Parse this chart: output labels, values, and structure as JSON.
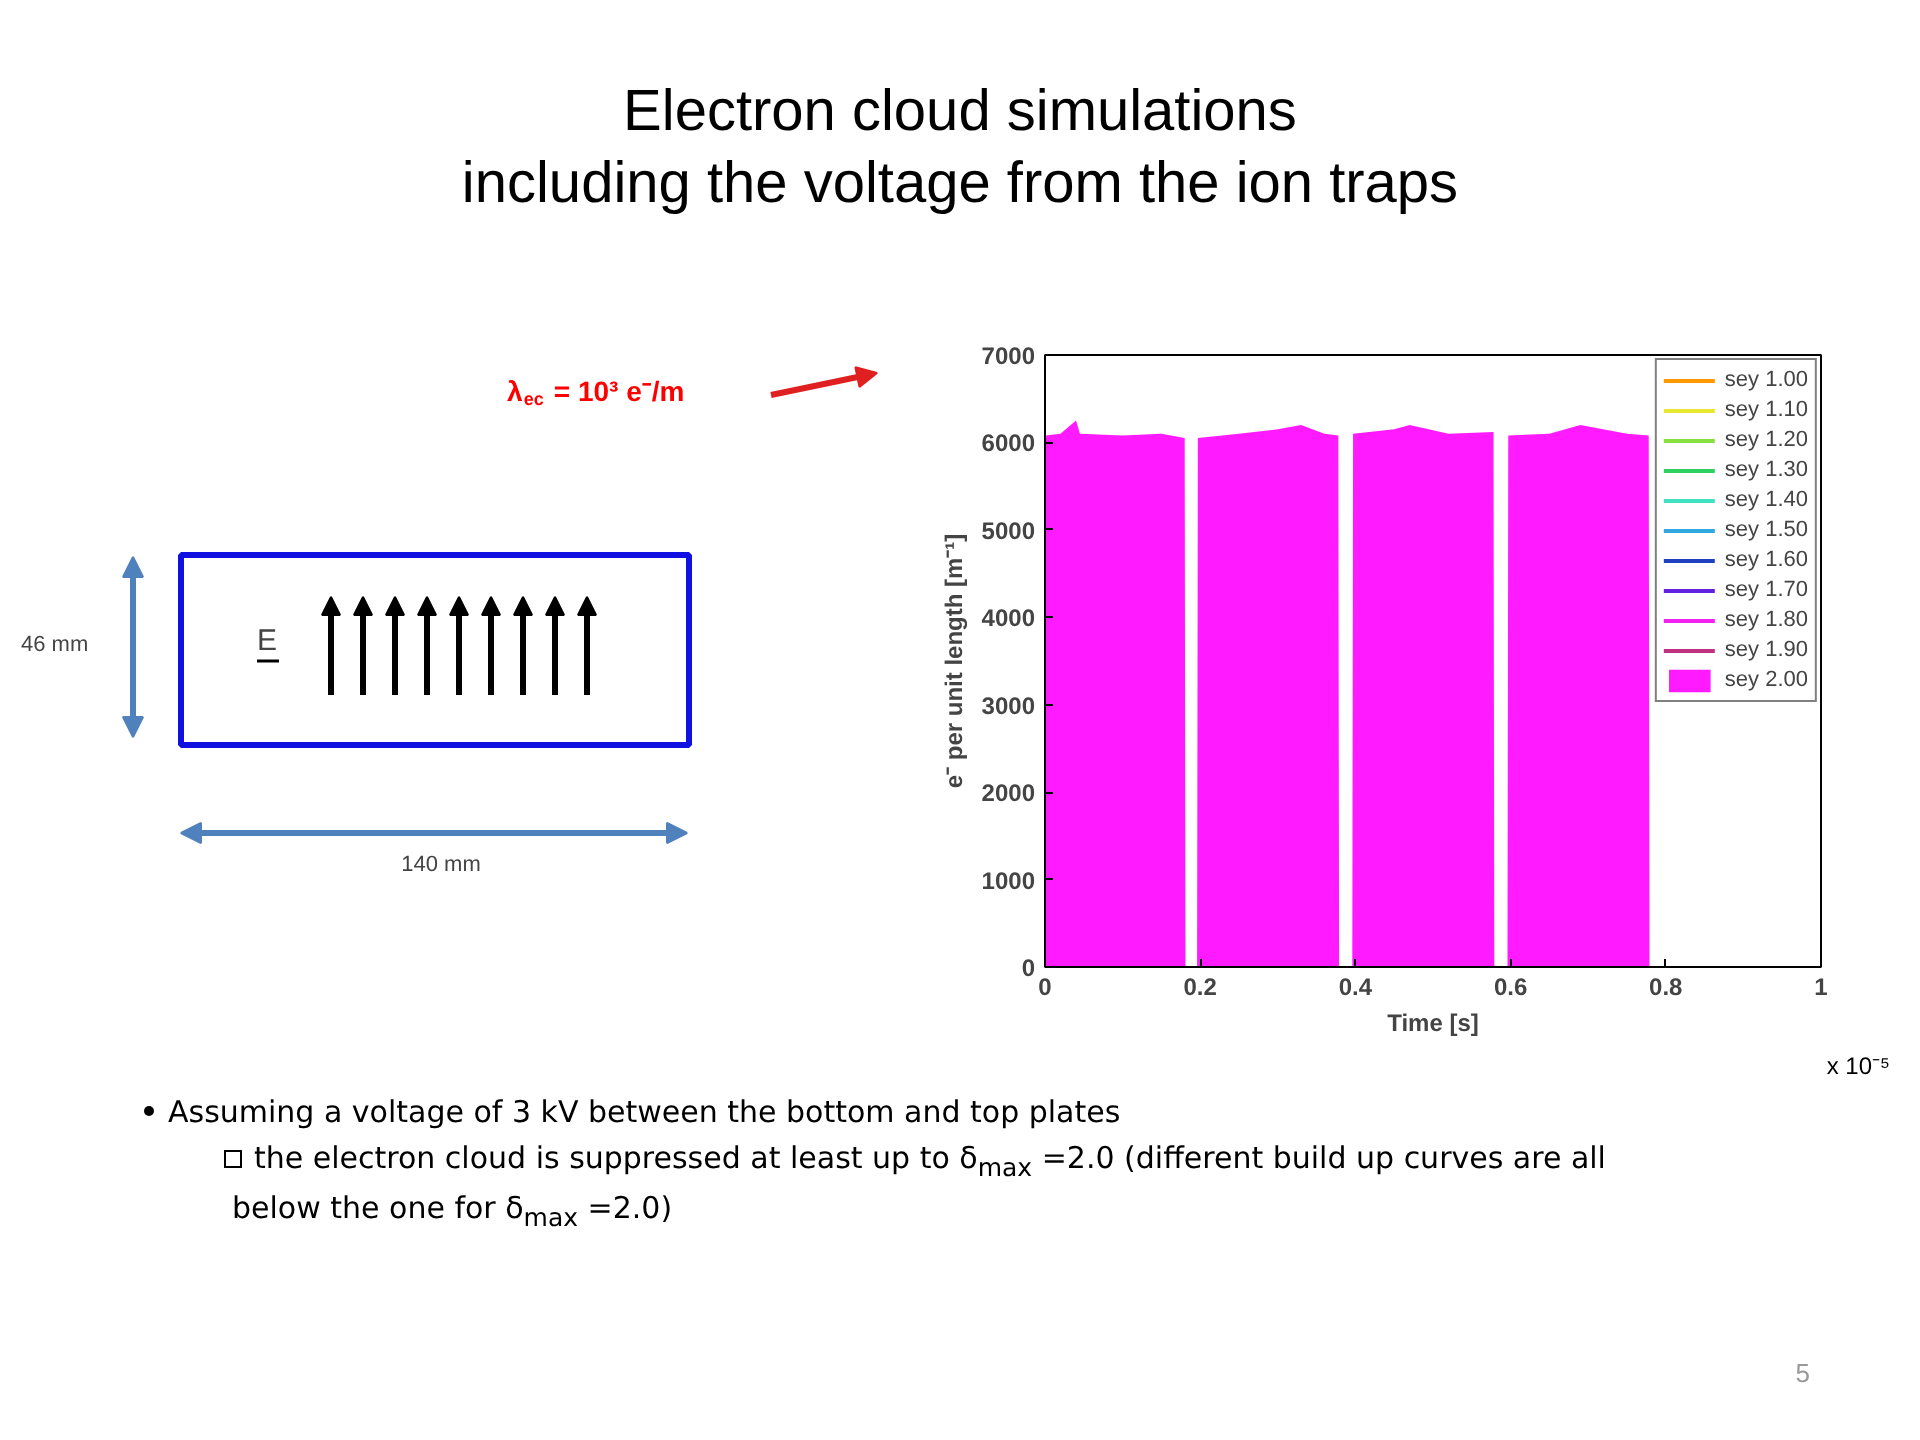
{
  "chart_data": {
    "type": "line",
    "title": "Electron cloud simulations\nincluding the voltage from the ion traps",
    "xlabel": "Time [s]",
    "ylabel": "e⁻ per unit length [m⁻¹]",
    "xlim": [
      0,
      1
    ],
    "xticks": [
      0,
      0.2,
      0.4,
      0.6,
      0.8,
      1
    ],
    "ylim": [
      0,
      7000
    ],
    "yticks": [
      0,
      1000,
      2000,
      3000,
      4000,
      5000,
      6000,
      7000
    ],
    "grid": false,
    "legend": "top right",
    "series": [
      {
        "name": "sey 1.00",
        "color": "#ff9900",
        "values": [
          null
        ]
      },
      {
        "name": "sey 1.10",
        "color": "#e8e830",
        "values": [
          null
        ]
      },
      {
        "name": "sey 1.20",
        "color": "#88e040",
        "values": [
          null
        ]
      },
      {
        "name": "sey 1.30",
        "color": "#30d060",
        "values": [
          null
        ]
      },
      {
        "name": "sey 1.40",
        "color": "#40e0c0",
        "values": [
          null
        ]
      },
      {
        "name": "sey 1.50",
        "color": "#30a8e0",
        "values": [
          null
        ]
      },
      {
        "name": "sey 1.60",
        "color": "#2040c0",
        "values": [
          null
        ]
      },
      {
        "name": "sey 1.70",
        "color": "#6020e0",
        "values": [
          null
        ]
      },
      {
        "name": "sey 1.80",
        "color": "#f020f0",
        "values": [
          null
        ]
      },
      {
        "name": "sey 1.90",
        "color": "#c03080",
        "values": [
          null
        ]
      },
      {
        "name": "sey 2.00",
        "color": "#ff1aff",
        "type": "area",
        "x": [
          0,
          0.001,
          0.02,
          0.04,
          0.045,
          0.1,
          0.15,
          0.18,
          0.181,
          0.196,
          0.197,
          0.25,
          0.3,
          0.33,
          0.36,
          0.378,
          0.379,
          0.396,
          0.397,
          0.45,
          0.47,
          0.52,
          0.578,
          0.579,
          0.596,
          0.597,
          0.65,
          0.69,
          0.75,
          0.778,
          0.779
        ],
        "values": [
          0,
          6080,
          6100,
          6250,
          6100,
          6080,
          6100,
          6050,
          0,
          0,
          6050,
          6100,
          6150,
          6200,
          6100,
          6080,
          0,
          0,
          6100,
          6150,
          6200,
          6100,
          6120,
          0,
          0,
          6080,
          6100,
          6200,
          6100,
          6080,
          0
        ]
      }
    ],
    "annotations": [
      "λ$_{ec}$ = 10³ e⁻/m",
      "46 mm",
      "140 mm",
      "E",
      "x 10⁻⁵",
      "Assuming a voltage of 3 kV between the bottom and top plates",
      "the electron cloud is suppressed at least up to δ$_{max}$ =2.0 (different build up curves are all below the one for δ$_{max}$ =2.0)",
      "5"
    ]
  }
}
